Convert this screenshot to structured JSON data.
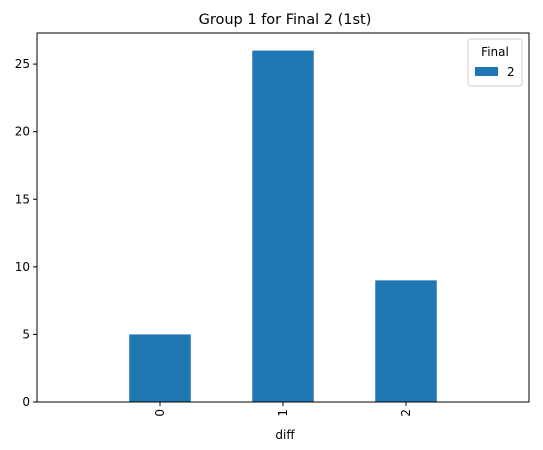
{
  "chart_data": {
    "type": "bar",
    "title": "Group 1 for Final 2 (1st)",
    "xlabel": "diff",
    "ylabel": "",
    "categories": [
      "0",
      "1",
      "2"
    ],
    "series": [
      {
        "name": "2",
        "values": [
          5,
          26,
          9
        ]
      }
    ],
    "ylim": [
      0,
      27.3
    ],
    "yticks": [
      0,
      5,
      10,
      15,
      20,
      25
    ],
    "grid": false,
    "legend": {
      "title": "Final",
      "placement": "top-right"
    },
    "colors": {
      "bar": "#1f77b4"
    }
  }
}
